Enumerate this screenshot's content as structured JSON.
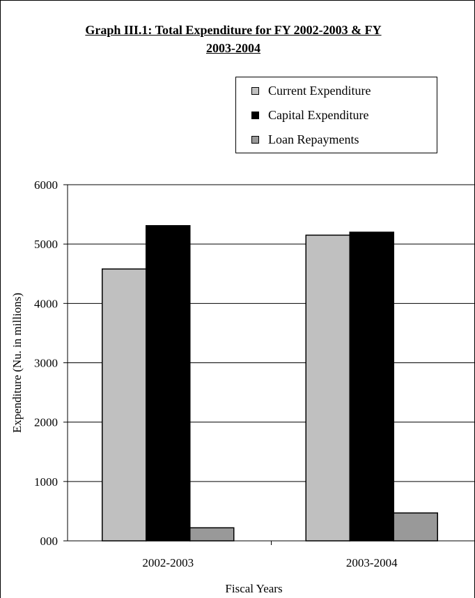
{
  "chart_data": {
    "type": "bar",
    "title_line1": "Graph III.1: Total Expenditure for FY 2002-2003 & FY",
    "title_line2": "2003-2004",
    "xlabel": "Fiscal Years",
    "ylabel": "Expenditure (Nu. in millions)",
    "categories": [
      "2002-2003",
      "2003-2004"
    ],
    "series": [
      {
        "name": "Current Expenditure",
        "values": [
          4580,
          5150
        ],
        "color": "#c0c0c0"
      },
      {
        "name": "Capital Expenditure",
        "values": [
          5310,
          5200
        ],
        "color": "#000000"
      },
      {
        "name": "Loan Repayments",
        "values": [
          220,
          470
        ],
        "color": "#999999"
      }
    ],
    "ylim": [
      0,
      6000
    ],
    "yticks": [
      "000",
      "1000",
      "2000",
      "3000",
      "4000",
      "5000",
      "6000"
    ],
    "ytick_values": [
      0,
      1000,
      2000,
      3000,
      4000,
      5000,
      6000
    ],
    "grid": true,
    "legend_position": "top-right"
  }
}
